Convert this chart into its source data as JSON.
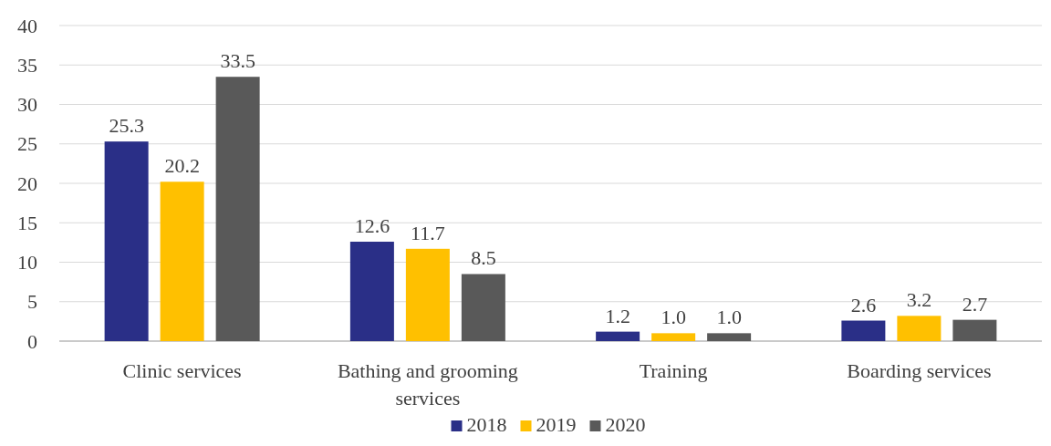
{
  "chart_data": {
    "type": "bar",
    "categories": [
      "Clinic services",
      "Bathing and grooming services",
      "Training",
      "Boarding services"
    ],
    "series": [
      {
        "name": "2018",
        "color": "#2a2f87",
        "values": [
          25.3,
          12.6,
          1.2,
          2.6
        ],
        "value_labels": [
          "25.3",
          "12.6",
          "1.2",
          "2.6"
        ]
      },
      {
        "name": "2019",
        "color": "#ffc000",
        "values": [
          20.2,
          11.7,
          1.0,
          3.2
        ],
        "value_labels": [
          "20.2",
          "11.7",
          "1.0",
          "3.2"
        ]
      },
      {
        "name": "2020",
        "color": "#595959",
        "values": [
          33.5,
          8.5,
          1.0,
          2.7
        ],
        "value_labels": [
          "33.5",
          "8.5",
          "1.0",
          "2.7"
        ]
      }
    ],
    "ylim": [
      0,
      40
    ],
    "yticks": [
      0,
      5,
      10,
      15,
      20,
      25,
      30,
      35,
      40
    ],
    "grid": "y",
    "legend": "bottom"
  }
}
